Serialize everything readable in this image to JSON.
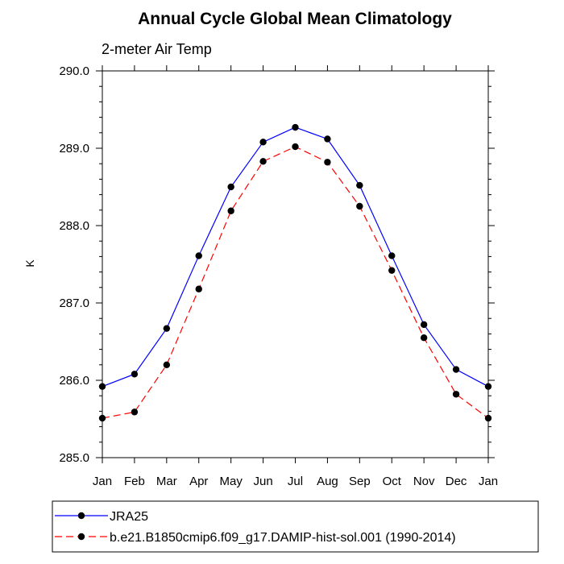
{
  "chart_data": {
    "type": "line",
    "title": "Annual Cycle Global Mean Climatology",
    "subtitle": "2-meter Air Temp",
    "xlabel": "",
    "ylabel": "K",
    "categories": [
      "Jan",
      "Feb",
      "Mar",
      "Apr",
      "May",
      "Jun",
      "Jul",
      "Aug",
      "Sep",
      "Oct",
      "Nov",
      "Dec",
      "Jan"
    ],
    "ylim": [
      285.0,
      290.0
    ],
    "yticks": [
      "285.0",
      "286.0",
      "287.0",
      "288.0",
      "289.0",
      "290.0"
    ],
    "grid": false,
    "legend_position": "bottom",
    "series": [
      {
        "name": "JRA25",
        "color": "#0000ff",
        "dash": "solid",
        "values": [
          285.92,
          286.08,
          286.67,
          287.61,
          288.5,
          289.08,
          289.27,
          289.12,
          288.52,
          287.61,
          286.72,
          286.14,
          285.92
        ]
      },
      {
        "name": "b.e21.B1850cmip6.f09_g17.DAMIP-hist-sol.001 (1990-2014)",
        "color": "#ff0000",
        "dash": "dashed",
        "values": [
          285.51,
          285.59,
          286.2,
          287.18,
          288.19,
          288.83,
          289.02,
          288.82,
          288.25,
          287.42,
          286.55,
          285.82,
          285.51
        ]
      }
    ]
  }
}
